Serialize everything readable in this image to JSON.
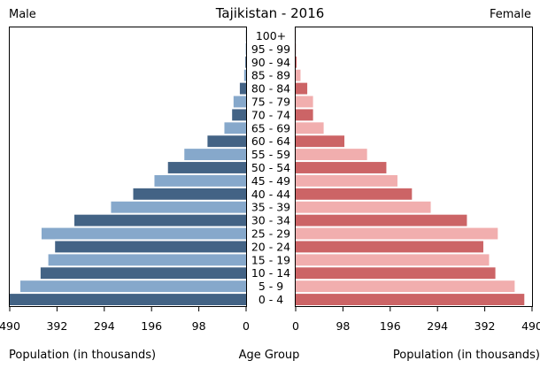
{
  "chart_data": {
    "type": "bar",
    "orientation": "horizontal-pyramid",
    "title": "Tajikistan - 2016",
    "left_label": "Male",
    "right_label": "Female",
    "xlabel_left": "Population (in thousands)",
    "xlabel_center": "Age Group",
    "xlabel_right": "Population (in thousands)",
    "male_ticks": [
      "490",
      "392",
      "294",
      "196",
      "98",
      "0"
    ],
    "female_ticks": [
      "0",
      "98",
      "196",
      "294",
      "392",
      "490"
    ],
    "xlim": [
      0,
      490
    ],
    "categories": [
      "100+",
      "95 - 99",
      "90 - 94",
      "85 - 89",
      "80 - 84",
      "75 - 79",
      "70 - 74",
      "65 - 69",
      "60 - 64",
      "55 - 59",
      "50 - 54",
      "45 - 49",
      "40 - 44",
      "35 - 39",
      "30 - 34",
      "25 - 29",
      "20 - 24",
      "15 - 19",
      "10 - 14",
      "5 - 9",
      "0 - 4"
    ],
    "series": [
      {
        "name": "Male",
        "values": [
          0.3,
          0.8,
          1.5,
          4,
          13,
          26,
          29,
          45,
          80,
          128,
          162,
          190,
          234,
          280,
          356,
          424,
          396,
          410,
          426,
          468,
          490
        ]
      },
      {
        "name": "Female",
        "values": [
          0.3,
          0.8,
          2,
          10,
          24,
          36,
          36,
          58,
          101,
          148,
          188,
          211,
          241,
          280,
          355,
          419,
          389,
          401,
          414,
          454,
          474
        ]
      }
    ],
    "colors": {
      "male_dark": "#436385",
      "male_light": "#86a8cb",
      "female_dark": "#cc6466",
      "female_light": "#f1aeae"
    }
  }
}
